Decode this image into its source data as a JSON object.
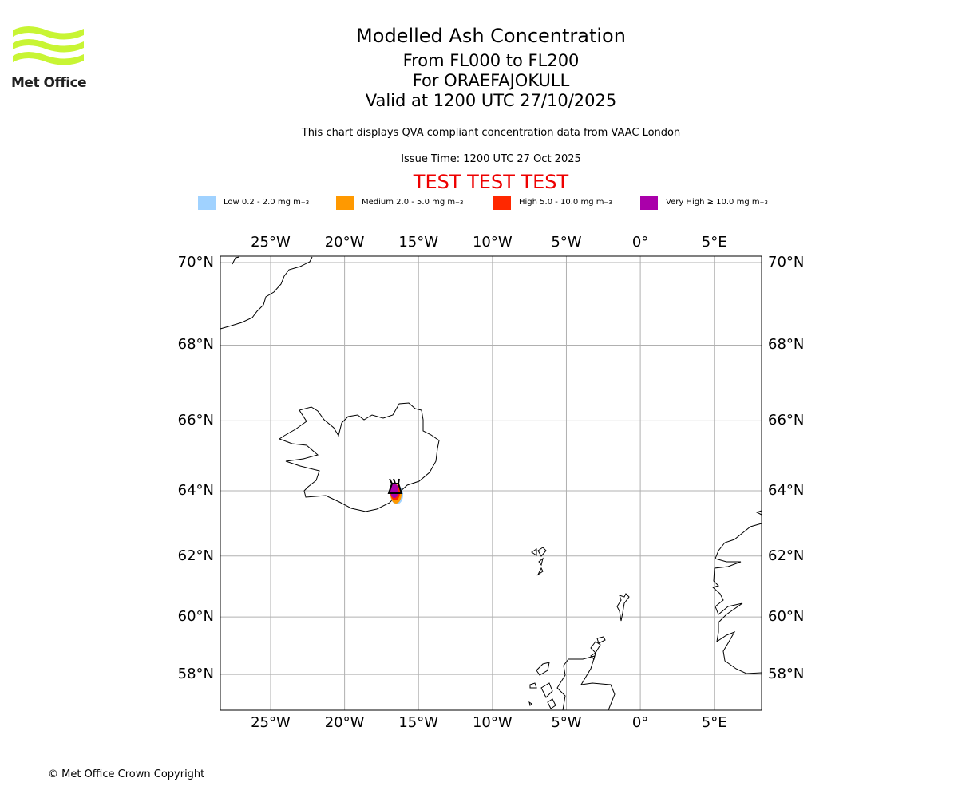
{
  "logo": {
    "text": "Met Office",
    "color": "#c8f534"
  },
  "header": {
    "title": "Modelled Ash Concentration",
    "levels": "From FL000 to FL200",
    "volcano": "For ORAEFAJOKULL",
    "valid": "Valid at 1200 UTC 27/10/2025",
    "note": "This chart displays QVA compliant concentration data from VAAC London",
    "issue": "Issue Time: 1200 UTC 27 Oct 2025",
    "test": "TEST TEST TEST"
  },
  "legend": [
    {
      "label": "Low 0.2 - 2.0 mg m",
      "sup": "−3",
      "color": "#a0d2ff"
    },
    {
      "label": "Medium 2.0 - 5.0 mg m",
      "sup": "−3",
      "color": "#ff9900"
    },
    {
      "label": "High 5.0 - 10.0 mg m",
      "sup": "−3",
      "color": "#ff2800"
    },
    {
      "label": "Very High ≥ 10.0 mg m",
      "sup": "−3",
      "color": "#aa00aa"
    }
  ],
  "map": {
    "lon_range": [
      -28.4,
      8.2
    ],
    "lat_range": [
      56.9,
      70.2
    ],
    "lon_ticks": [
      {
        "v": -25,
        "l": "25°W"
      },
      {
        "v": -20,
        "l": "20°W"
      },
      {
        "v": -15,
        "l": "15°W"
      },
      {
        "v": -10,
        "l": "10°W"
      },
      {
        "v": -5,
        "l": "5°W"
      },
      {
        "v": 0,
        "l": "0°"
      },
      {
        "v": 5,
        "l": "5°E"
      }
    ],
    "lat_ticks": [
      {
        "v": 70,
        "l": "70°N"
      },
      {
        "v": 68,
        "l": "68°N"
      },
      {
        "v": 66,
        "l": "66°N"
      },
      {
        "v": 64,
        "l": "64°N"
      },
      {
        "v": 62,
        "l": "62°N"
      },
      {
        "v": 60,
        "l": "60°N"
      },
      {
        "v": 58,
        "l": "58°N"
      }
    ],
    "volcano": {
      "lat": 64.0,
      "lon": -16.65
    }
  },
  "footer": "© Met Office Crown Copyright"
}
